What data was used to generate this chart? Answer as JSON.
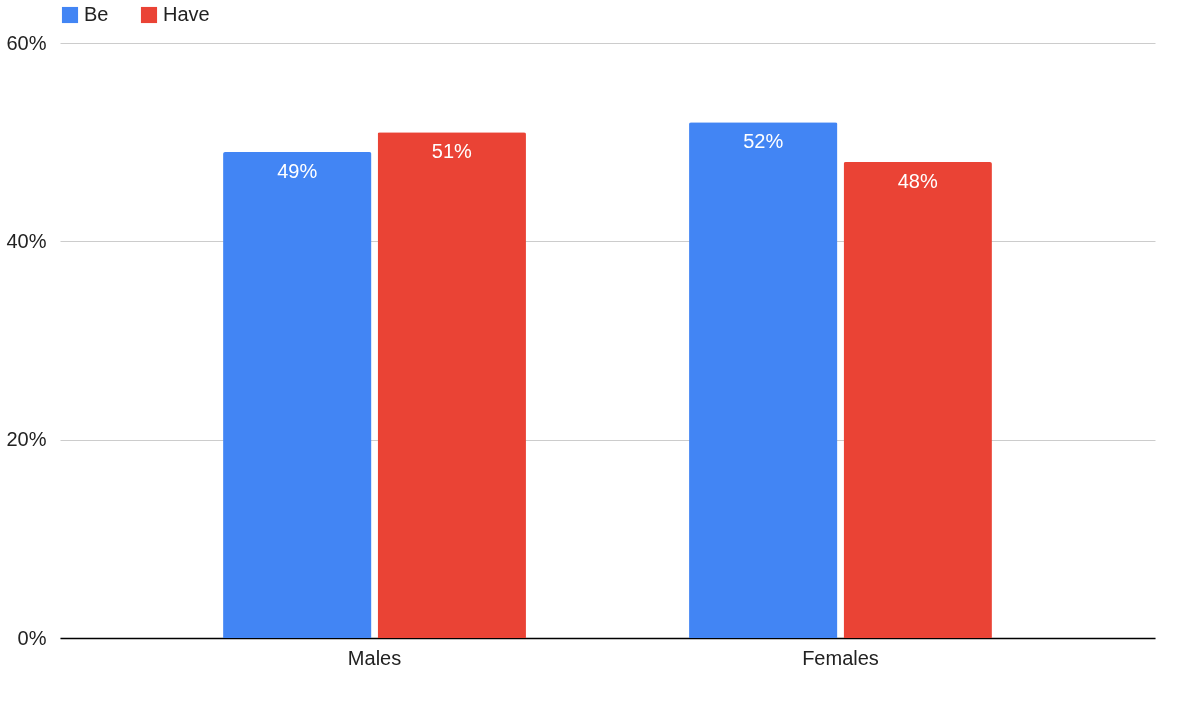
{
  "chart_data": {
    "type": "bar",
    "categories": [
      "Males",
      "Females"
    ],
    "series": [
      {
        "name": "Be",
        "color": "#4285f4",
        "values": [
          49,
          52
        ],
        "value_labels": [
          "49%",
          "52%"
        ]
      },
      {
        "name": "Have",
        "color": "#ea4335",
        "values": [
          51,
          48
        ],
        "value_labels": [
          "51%",
          "48%"
        ]
      }
    ],
    "ylim": [
      0,
      60
    ],
    "yticks": [
      {
        "value": 0,
        "label": "0%"
      },
      {
        "value": 20,
        "label": "20%"
      },
      {
        "value": 40,
        "label": "40%"
      },
      {
        "value": 60,
        "label": "60%"
      }
    ],
    "grid": "y",
    "legend": "top"
  }
}
